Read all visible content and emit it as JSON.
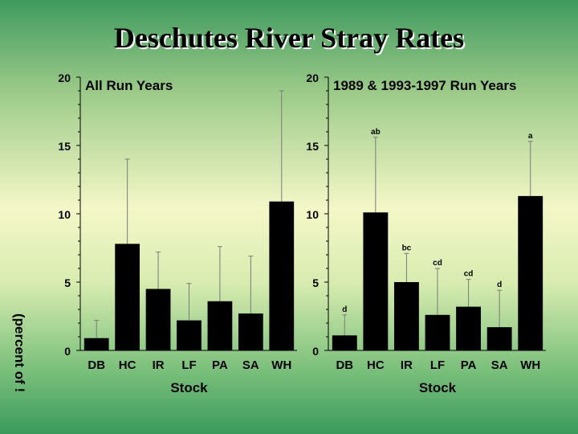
{
  "title": "Deschutes River Stray Rates",
  "ylabel": "(percent of !",
  "chart_data": [
    {
      "type": "bar",
      "title": "All Run Years",
      "xlabel": "Stock",
      "categories": [
        "DB",
        "HC",
        "IR",
        "LF",
        "PA",
        "SA",
        "WH"
      ],
      "values": [
        0.9,
        7.8,
        4.5,
        2.2,
        3.6,
        2.7,
        10.9
      ],
      "error_upper": [
        2.2,
        14.0,
        7.2,
        4.9,
        7.6,
        6.9,
        19.0
      ],
      "letters": [
        "",
        "",
        "",
        "",
        "",
        "",
        ""
      ],
      "ylim": [
        0,
        20
      ],
      "yticks": [
        "0",
        "5",
        "10",
        "15",
        "20"
      ]
    },
    {
      "type": "bar",
      "title": "1989 & 1993-1997 Run Years",
      "xlabel": "Stock",
      "categories": [
        "DB",
        "HC",
        "IR",
        "LF",
        "PA",
        "SA",
        "WH"
      ],
      "values": [
        1.1,
        10.1,
        5.0,
        2.6,
        3.2,
        1.7,
        11.3
      ],
      "error_upper": [
        2.6,
        15.6,
        7.1,
        6.0,
        5.2,
        4.4,
        15.3
      ],
      "letters": [
        "d",
        "ab",
        "bc",
        "cd",
        "cd",
        "d",
        "a"
      ],
      "ylim": [
        0,
        20
      ],
      "yticks": [
        "0",
        "5",
        "10",
        "15",
        "20"
      ]
    }
  ]
}
